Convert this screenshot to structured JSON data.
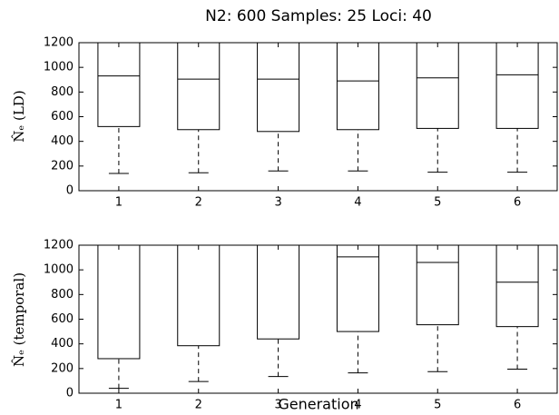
{
  "chart_data": [
    {
      "type": "box",
      "title": "N2: 600 Samples: 25 Loci: 40",
      "ylabel": "N̂ₑ (LD)",
      "categories": [
        "1",
        "2",
        "3",
        "4",
        "5",
        "6"
      ],
      "whisker_low": [
        140,
        145,
        160,
        160,
        150,
        150
      ],
      "q1": [
        520,
        495,
        480,
        495,
        505,
        505
      ],
      "median": [
        930,
        905,
        905,
        890,
        915,
        940
      ],
      "q3": [
        1200,
        1200,
        1200,
        1200,
        1200,
        1200
      ],
      "ylim": [
        0,
        1200
      ],
      "yticks": [
        0,
        200,
        400,
        600,
        800,
        1000,
        1200
      ]
    },
    {
      "type": "box",
      "ylabel": "N̂ₑ (temporal)",
      "xlabel": "Generation",
      "categories": [
        "1",
        "2",
        "3",
        "4",
        "5",
        "6"
      ],
      "whisker_low": [
        40,
        95,
        135,
        165,
        175,
        195
      ],
      "q1": [
        280,
        385,
        440,
        500,
        555,
        540
      ],
      "median": [
        null,
        null,
        null,
        1105,
        1060,
        900
      ],
      "q3": [
        1200,
        1200,
        1200,
        1200,
        1200,
        1200
      ],
      "ylim": [
        0,
        1200
      ],
      "yticks": [
        0,
        200,
        400,
        600,
        800,
        1000,
        1200
      ]
    }
  ]
}
